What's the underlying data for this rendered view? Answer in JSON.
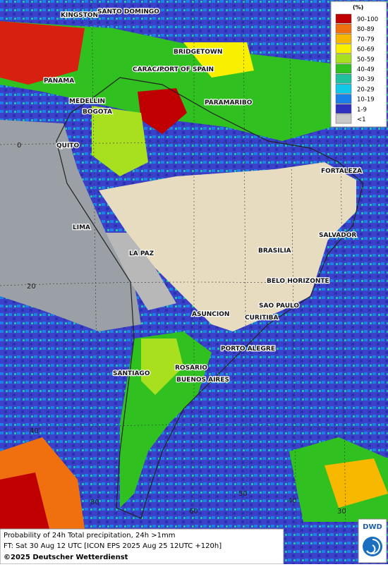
{
  "map": {
    "cities": [
      "KINGSTON",
      "SANTO DOMINGO",
      "BRIDGETOWN",
      "PANAMA",
      "CARACAS",
      "PORT OF SPAIN",
      "MEDELLIN",
      "BOGOTA",
      "PARAMARIBO",
      "QUITO",
      "FORTALEZA",
      "LIMA",
      "SALVADOR",
      "BRASILIA",
      "LA PAZ",
      "BELO HORIZONTE",
      "SAO PAULO",
      "ASUNCION",
      "CURITIBA",
      "PORTO ALEGRE",
      "SANTIAGO",
      "ROSARIO",
      "BUENOS AIRES"
    ],
    "lat_labels": [
      "0",
      "20",
      "40"
    ],
    "lon_labels": [
      "80",
      "60",
      "50",
      "40",
      "30"
    ]
  },
  "legend": {
    "unit": "(%)",
    "items": [
      {
        "label": "90-100",
        "color": "#c00000"
      },
      {
        "label": "80-89",
        "color": "#f07010"
      },
      {
        "label": "70-79",
        "color": "#f8b800"
      },
      {
        "label": "60-69",
        "color": "#f8f000"
      },
      {
        "label": "50-59",
        "color": "#a8e020"
      },
      {
        "label": "40-49",
        "color": "#30c020"
      },
      {
        "label": "30-39",
        "color": "#20c0a0"
      },
      {
        "label": "20-29",
        "color": "#10c8e8"
      },
      {
        "label": "10-19",
        "color": "#1880e8"
      },
      {
        "label": "1-9",
        "color": "#3030c0"
      },
      {
        "label": "<1",
        "color": "#c8c8c8"
      }
    ]
  },
  "footer": {
    "line1": "Probability of 24h Total precipitation, 24h >1mm",
    "line2": "FT: Sat 30 Aug 12 UTC [ICON EPS 2025 Aug 25 12UTC +120h]",
    "line3": "©2025 Deutscher Wetterdienst",
    "logo": "DWD"
  }
}
